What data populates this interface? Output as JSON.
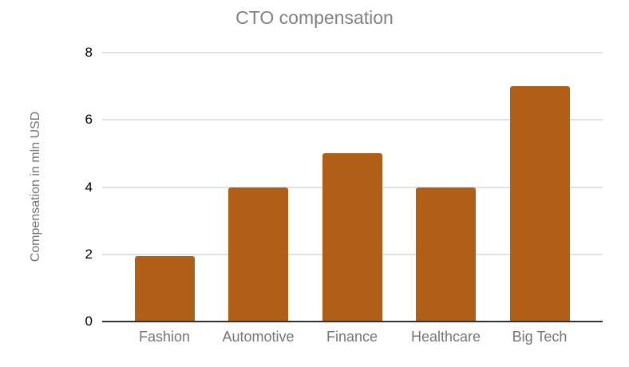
{
  "chart_data": {
    "type": "bar",
    "title": "CTO compensation",
    "categories": [
      "Fashion",
      "Automotive",
      "Finance",
      "Healthcare",
      "Big Tech"
    ],
    "values": [
      1.95,
      4,
      5,
      4,
      7
    ],
    "xlabel": "",
    "ylabel": "Compensation in mln USD",
    "ylim": [
      0,
      8
    ],
    "yticks": [
      0,
      2,
      4,
      6,
      8
    ],
    "grid": true,
    "legend_position": "none",
    "colors": {
      "bar": "#b15f16",
      "gridline": "#e0e0e0",
      "axis_line": "#333333",
      "title_text": "#818181",
      "category_text": "#757575",
      "tick_text": "#000000",
      "background": "#ffffff"
    }
  }
}
